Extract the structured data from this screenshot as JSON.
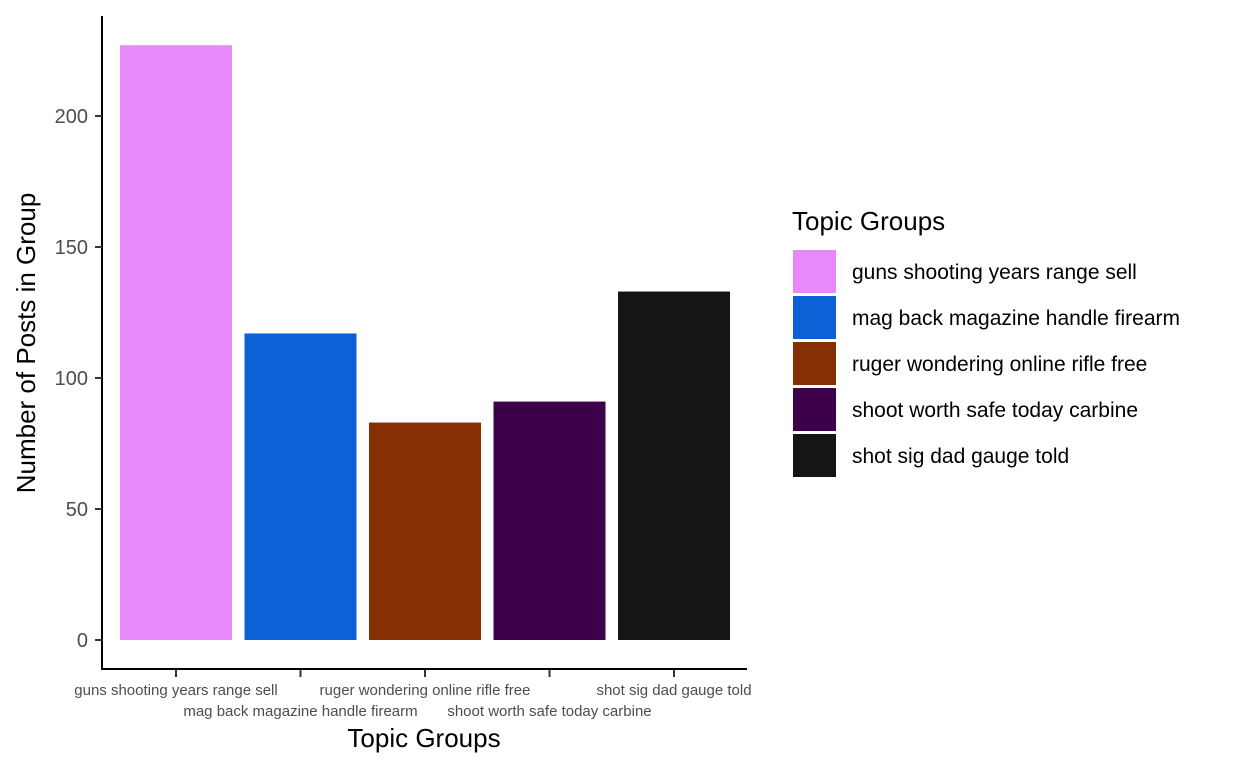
{
  "chart_data": {
    "type": "bar",
    "title": "",
    "xlabel": "Topic Groups",
    "ylabel": "Number of Posts in Group",
    "categories": [
      "guns shooting years range sell",
      "mag back magazine handle firearm",
      "ruger wondering online rifle free",
      "shoot worth safe today carbine",
      "shot sig dad gauge told"
    ],
    "values": [
      227,
      117,
      83,
      91,
      133
    ],
    "colors": [
      "#E788FB",
      "#0B61D5",
      "#852F03",
      "#3D004A",
      "#151515"
    ],
    "ylim": [
      0,
      227
    ],
    "yticks": [
      0,
      50,
      100,
      150,
      200
    ],
    "grid": false,
    "legend": {
      "title": "Topic Groups",
      "position": "right",
      "entries": [
        "guns shooting years range sell",
        "mag back magazine handle firearm",
        "ruger wondering online rifle free",
        "shoot worth safe today carbine",
        "shot sig dad gauge told"
      ]
    }
  }
}
